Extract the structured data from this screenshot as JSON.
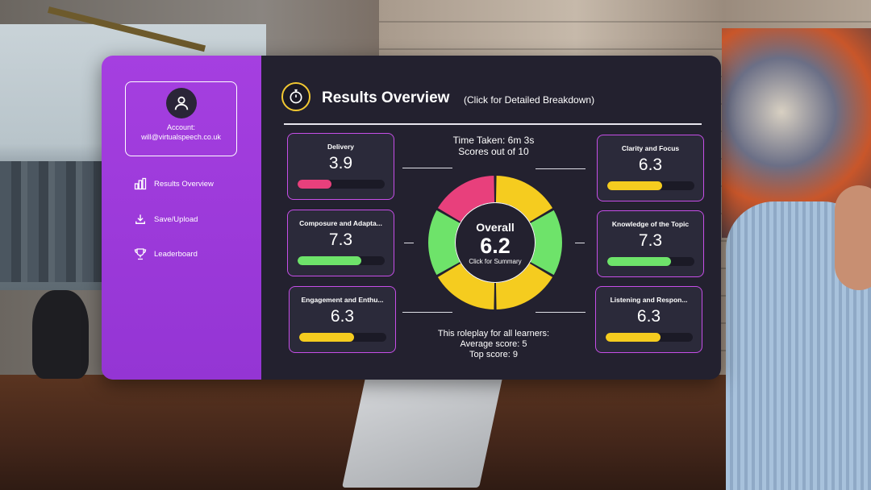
{
  "account": {
    "label": "Account:",
    "email": "will@virtualspeech.co.uk",
    "avatar_icon": "user-icon"
  },
  "nav": [
    {
      "label": "Results Overview",
      "icon": "bar-chart-icon"
    },
    {
      "label": "Save/Upload",
      "icon": "download-icon"
    },
    {
      "label": "Leaderboard",
      "icon": "trophy-icon"
    }
  ],
  "header": {
    "title": "Results Overview",
    "subtitle": "(Click for Detailed Breakdown)",
    "icon": "stopwatch-icon"
  },
  "summary": {
    "time_taken": "Time Taken: 6m 3s",
    "scores_out_of": "Scores out of 10",
    "overall_label": "Overall",
    "overall_value": "6.2",
    "overall_hint": "Click for Summary",
    "learners_line1": "This roleplay for all learners:",
    "learners_line2": "Average score: 5",
    "learners_line3": "Top score: 9"
  },
  "metrics": [
    {
      "name": "Delivery",
      "value": "3.9",
      "score": 3.9,
      "color": "#e8407c"
    },
    {
      "name": "Composure and Adapta...",
      "value": "7.3",
      "score": 7.3,
      "color": "#6ee36a"
    },
    {
      "name": "Engagement and Enthu...",
      "value": "6.3",
      "score": 6.3,
      "color": "#f5cc1f"
    },
    {
      "name": "Clarity and Focus",
      "value": "6.3",
      "score": 6.3,
      "color": "#f5cc1f"
    },
    {
      "name": "Knowledge of the Topic",
      "value": "7.3",
      "score": 7.3,
      "color": "#6ee36a"
    },
    {
      "name": "Listening and Respon...",
      "value": "6.3",
      "score": 6.3,
      "color": "#f5cc1f"
    }
  ],
  "colors": {
    "accent_purple": "#9b3bd9",
    "panel_dark": "#23212f",
    "card_border": "#c64ee8",
    "red": "#e8407c",
    "green": "#6ee36a",
    "yellow": "#f5cc1f"
  }
}
